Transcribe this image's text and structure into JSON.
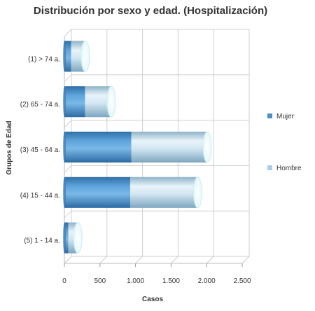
{
  "chart_data": {
    "type": "bar",
    "orientation": "horizontal",
    "stacked": true,
    "three_d": true,
    "title": "Distribución por sexo y edad. (Hospitalización)",
    "xlabel": "Casos",
    "ylabel": "Grupos de Edad",
    "categories": [
      "(1) > 74 a.",
      "(2) 65 - 74 a.",
      "(3) 45 - 64 a.",
      "(4) 15 - 44 a.",
      "(5) 1 - 14 a."
    ],
    "series": [
      {
        "name": "Mujer",
        "color": "#4a8fc9",
        "values": [
          95,
          290,
          940,
          925,
          55
        ]
      },
      {
        "name": "Hombre",
        "color": "#a8cfe8",
        "values": [
          200,
          370,
          1070,
          950,
          135
        ]
      }
    ],
    "xlim": [
      0,
      2500
    ],
    "xticks": [
      0,
      500,
      1000,
      1500,
      2000,
      2500
    ],
    "xtick_labels": [
      "0",
      "500",
      "1.000",
      "1.500",
      "2.000",
      "2.500"
    ],
    "grid": true,
    "legend_position": "right"
  }
}
